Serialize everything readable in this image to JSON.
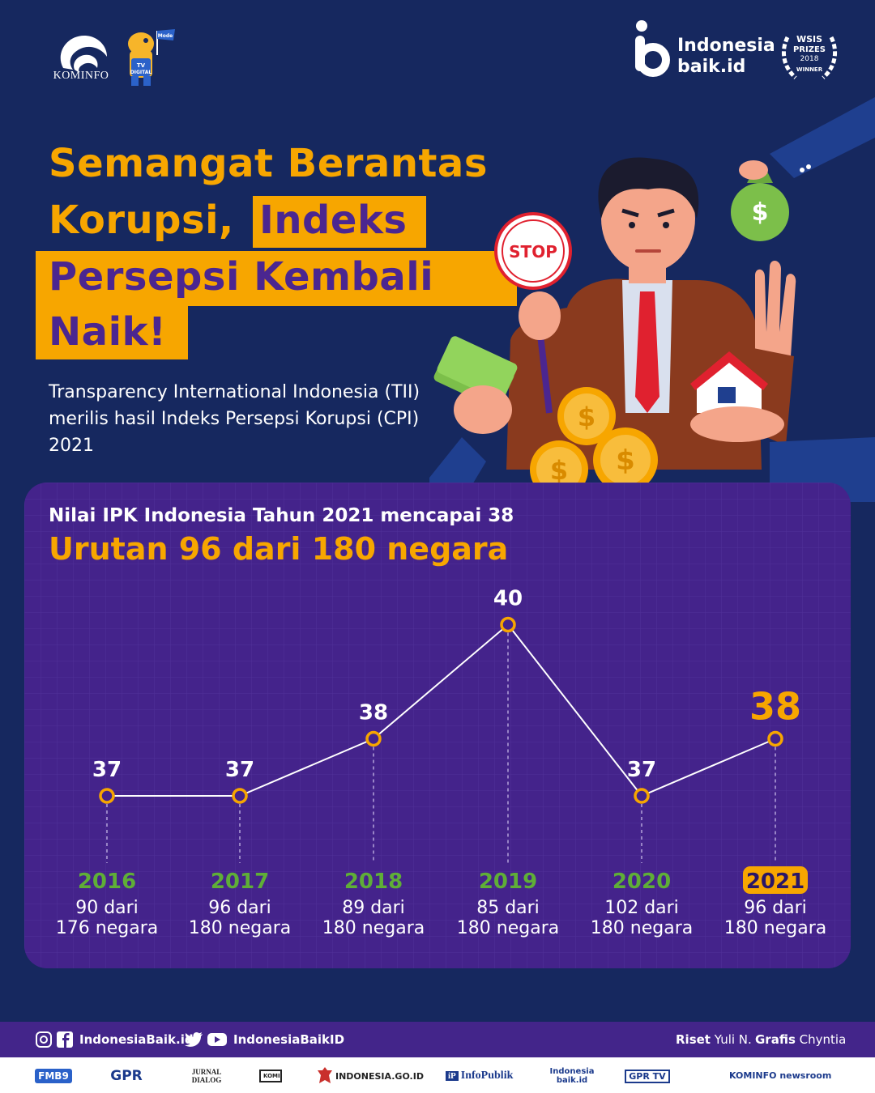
{
  "header": {
    "kominfo_label": "KOMINFO",
    "mascot_label": "TV DIGITAL",
    "mascot_flag": "Mode",
    "brand_line1": "Indonesia",
    "brand_line2": "baik.id",
    "award_line1": "WSIS",
    "award_line2": "PRIZES",
    "award_line3": "2018",
    "award_line4": "WINNER"
  },
  "title": {
    "line1": "Semangat Berantas",
    "line2a": "Korupsi,",
    "line2b": "Indeks",
    "line3": "Persepsi Kembali",
    "line4": "Naik!"
  },
  "intro": "Transparency International Indonesia (TII) merilis hasil Indeks Persepsi Korupsi (CPI) 2021",
  "illustration": {
    "stop_sign": "STOP",
    "dollar": "$"
  },
  "chart_data": {
    "type": "line",
    "subtitle": "Nilai IPK Indonesia Tahun 2021 mencapai 38",
    "title": "Urutan 96 dari 180 negara",
    "categories": [
      "2016",
      "2017",
      "2018",
      "2019",
      "2020",
      "2021"
    ],
    "values": [
      37,
      37,
      38,
      40,
      37,
      38
    ],
    "ranks": [
      "90 dari",
      "96 dari",
      "89 dari",
      "85 dari",
      "102 dari",
      "96 dari"
    ],
    "totals": [
      "176 negara",
      "180 negara",
      "180 negara",
      "180 negara",
      "180 negara",
      "180 negara"
    ],
    "highlight": "2021",
    "ylim": [
      35,
      41
    ],
    "grid": true
  },
  "colors": {
    "background": "#16285f",
    "accent": "#f7a600",
    "panel": "#44238b",
    "year_green": "#5fae37",
    "title_purple": "#4b2690"
  },
  "footer": {
    "handle1": "IndonesiaBaik.id",
    "handle2": "IndonesiaBaikID",
    "riset_label": "Riset",
    "riset_name": "Yuli N.",
    "grafis_label": "Grafis",
    "grafis_name": "Chyntia",
    "partners": [
      "FMB9",
      "GPR",
      "JURNAL DIALOG",
      "KOMINFO",
      "INDONESIA.GO.ID",
      "InfoPublik",
      "Indonesia baik.id",
      "GPR TV",
      "KOMINFO newsroom"
    ]
  }
}
